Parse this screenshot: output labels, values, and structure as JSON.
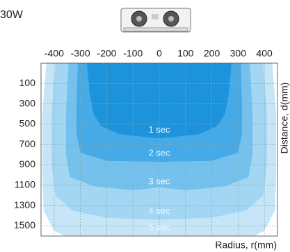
{
  "chart_data": {
    "type": "area",
    "title": "30W",
    "xlabel": "Radius, r(mm)",
    "ylabel": "Distance, d(mm)",
    "xlim": [
      -450,
      450
    ],
    "xticks": [
      -400,
      -300,
      -200,
      -100,
      0,
      100,
      200,
      300,
      400
    ],
    "ylim": [
      -100,
      1600
    ],
    "yticks": [
      100,
      300,
      500,
      700,
      900,
      1100,
      1300,
      1500
    ],
    "y_inverted": true,
    "grid": true,
    "series": [
      {
        "name": "5 sec",
        "color": "#c6e6f8",
        "x": [
          0,
          430,
          445,
          445,
          440,
          400,
          360,
          0
        ],
        "values": [
          -100,
          -100,
          400,
          1000,
          1350,
          1550,
          1600,
          1600
        ]
      },
      {
        "name": "4 sec",
        "color": "#a2d6f3",
        "x": [
          0,
          395,
          410,
          410,
          395,
          330,
          200,
          0
        ],
        "values": [
          -100,
          -100,
          400,
          900,
          1200,
          1350,
          1420,
          1440
        ]
      },
      {
        "name": "3 sec",
        "color": "#74c1ee",
        "x": [
          0,
          345,
          355,
          355,
          340,
          250,
          100,
          0
        ],
        "values": [
          -100,
          -100,
          400,
          800,
          1020,
          1110,
          1150,
          1120
        ]
      },
      {
        "name": "2 sec",
        "color": "#45aae6",
        "x": [
          0,
          310,
          315,
          315,
          300,
          200,
          0
        ],
        "values": [
          -100,
          -100,
          300,
          600,
          780,
          860,
          870
        ]
      },
      {
        "name": "1 sec",
        "color": "#1d93dc",
        "x": [
          0,
          275,
          265,
          250,
          220,
          150,
          0
        ],
        "values": [
          -100,
          -100,
          200,
          400,
          520,
          600,
          640
        ]
      }
    ]
  }
}
